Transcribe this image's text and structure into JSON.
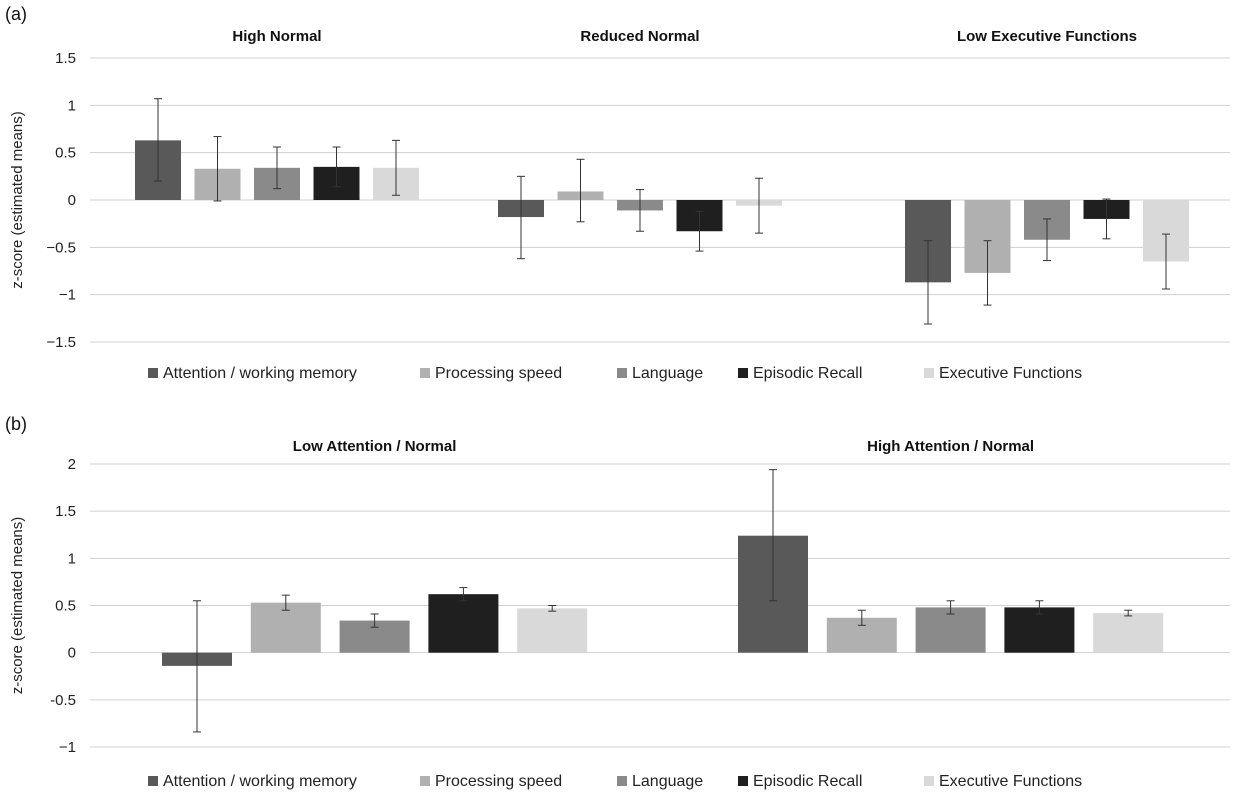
{
  "panel_labels": {
    "a": "(a)",
    "b": "(b)"
  },
  "chart_data": [
    {
      "type": "bar",
      "panel": "(a)",
      "title": "",
      "xlabel": "",
      "ylabel": "z-score (estimated means)",
      "ylim": [
        -1.5,
        1.5
      ],
      "yticks": [
        1.5,
        1,
        0.5,
        0,
        -0.5,
        -1,
        -1.5
      ],
      "ytick_labels": [
        "1.5",
        "1",
        "0.5",
        "0",
        "−0.5",
        "−1",
        "−1.5"
      ],
      "grid": true,
      "legend_position": "bottom",
      "categories": [
        "High Normal",
        "Reduced Normal",
        "Low Executive Functions"
      ],
      "series": [
        {
          "name": "Attention / working memory",
          "color": "#595959",
          "values": [
            0.63,
            -0.18,
            -0.87
          ],
          "err_low": [
            0.2,
            -0.62,
            -1.31
          ],
          "err_high": [
            1.07,
            0.25,
            -0.43
          ]
        },
        {
          "name": "Processing speed",
          "color": "#b0b0b0",
          "values": [
            0.33,
            0.09,
            -0.77
          ],
          "err_low": [
            -0.01,
            -0.23,
            -1.11
          ],
          "err_high": [
            0.67,
            0.43,
            -0.43
          ]
        },
        {
          "name": "Language",
          "color": "#8a8a8a",
          "values": [
            0.34,
            -0.11,
            -0.42
          ],
          "err_low": [
            0.12,
            -0.33,
            -0.64
          ],
          "err_high": [
            0.56,
            0.11,
            -0.2
          ]
        },
        {
          "name": "Episodic Recall",
          "color": "#1f1f1f",
          "values": [
            0.35,
            -0.33,
            -0.2
          ],
          "err_low": [
            0.14,
            -0.54,
            -0.41
          ],
          "err_high": [
            0.56,
            -0.12,
            0.01
          ]
        },
        {
          "name": "Executive Functions",
          "color": "#d9d9d9",
          "values": [
            0.34,
            -0.06,
            -0.65
          ],
          "err_low": [
            0.05,
            -0.35,
            -0.94
          ],
          "err_high": [
            0.63,
            0.23,
            -0.36
          ]
        }
      ]
    },
    {
      "type": "bar",
      "panel": "(b)",
      "title": "",
      "xlabel": "",
      "ylabel": "z-score (estimated means)",
      "ylim": [
        -1,
        2
      ],
      "yticks": [
        2,
        1.5,
        1,
        0.5,
        0,
        -0.5,
        -1
      ],
      "ytick_labels": [
        "2",
        "1.5",
        "1",
        "0.5",
        "0",
        "-0.5",
        "−1"
      ],
      "grid": true,
      "legend_position": "bottom",
      "categories": [
        "Low Attention / Normal",
        "High Attention / Normal"
      ],
      "series": [
        {
          "name": "Attention / working memory",
          "color": "#595959",
          "values": [
            -0.14,
            1.24
          ],
          "err_low": [
            -0.84,
            0.55
          ],
          "err_high": [
            0.55,
            1.94
          ]
        },
        {
          "name": "Processing speed",
          "color": "#b0b0b0",
          "values": [
            0.53,
            0.37
          ],
          "err_low": [
            0.45,
            0.29
          ],
          "err_high": [
            0.61,
            0.45
          ]
        },
        {
          "name": "Language",
          "color": "#8a8a8a",
          "values": [
            0.34,
            0.48
          ],
          "err_low": [
            0.27,
            0.41
          ],
          "err_high": [
            0.41,
            0.55
          ]
        },
        {
          "name": "Episodic Recall",
          "color": "#1f1f1f",
          "values": [
            0.62,
            0.48
          ],
          "err_low": [
            0.55,
            0.41
          ],
          "err_high": [
            0.69,
            0.55
          ]
        },
        {
          "name": "Executive Functions",
          "color": "#d9d9d9",
          "values": [
            0.47,
            0.42
          ],
          "err_low": [
            0.44,
            0.39
          ],
          "err_high": [
            0.5,
            0.45
          ]
        }
      ]
    }
  ]
}
